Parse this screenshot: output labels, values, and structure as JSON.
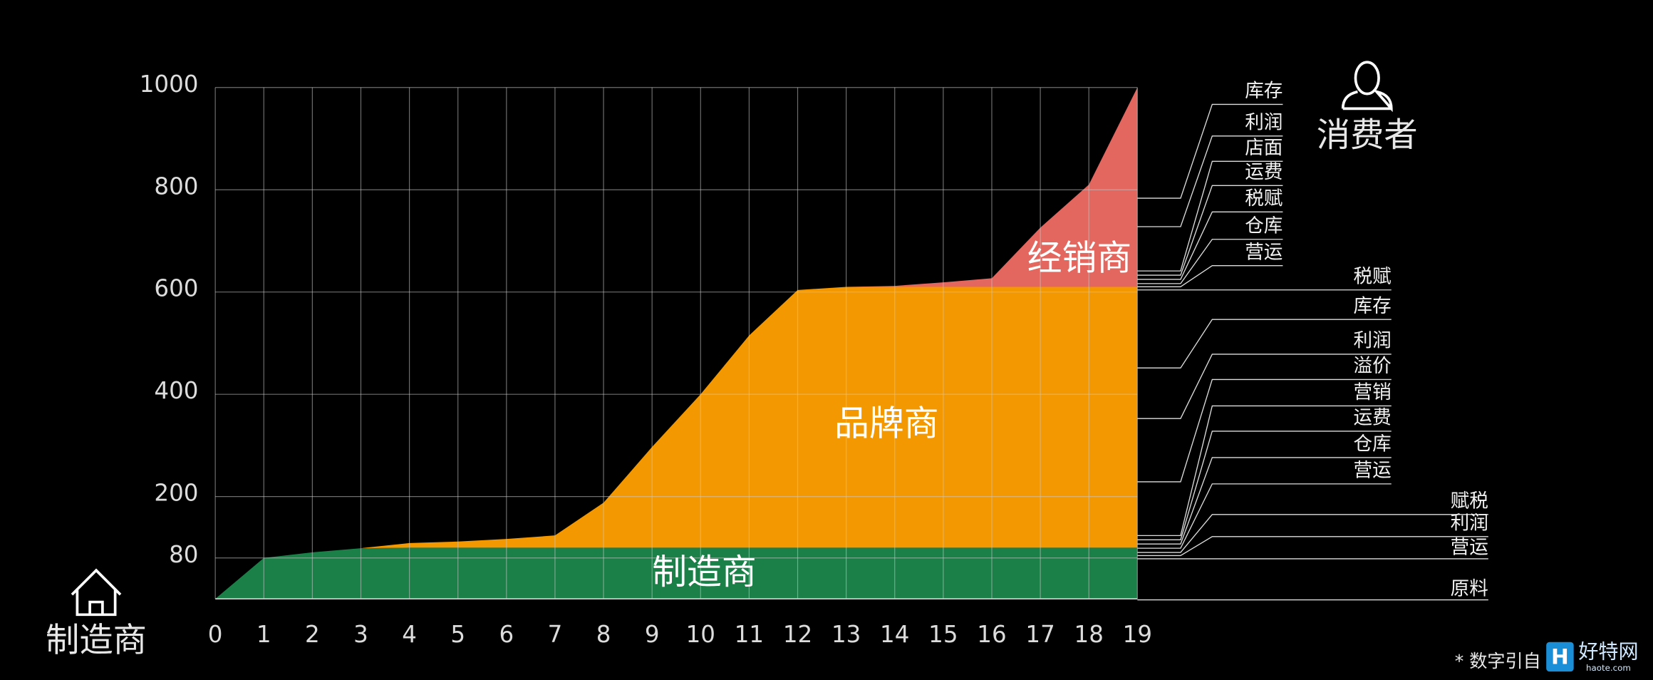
{
  "chart_data": {
    "type": "area",
    "stacked": true,
    "grid": true,
    "x": [
      0,
      1,
      2,
      3,
      4,
      5,
      6,
      7,
      8,
      9,
      10,
      11,
      12,
      13,
      14,
      15,
      16,
      17,
      18,
      19
    ],
    "xlim": [
      0,
      19
    ],
    "xticks": [
      0,
      1,
      2,
      3,
      4,
      5,
      6,
      7,
      8,
      9,
      10,
      11,
      12,
      13,
      14,
      15,
      16,
      17,
      18,
      19
    ],
    "ylim": [
      0,
      1000
    ],
    "yticks": [
      80,
      200,
      400,
      600,
      800,
      1000
    ],
    "series": [
      {
        "name": "制造商",
        "color": "#1b7f48",
        "values": [
          0,
          80,
          91,
          99,
          100,
          100,
          100,
          100,
          100,
          100,
          100,
          100,
          100,
          100,
          100,
          100,
          100,
          100,
          100,
          100
        ]
      },
      {
        "name": "品牌商",
        "color": "#f39800",
        "values": [
          0,
          0,
          0,
          0,
          9,
          12,
          17,
          24,
          88,
          197,
          300,
          415,
          504,
          510,
          510,
          510,
          510,
          510,
          510,
          510
        ]
      },
      {
        "name": "经销商",
        "color": "#e4675f",
        "values": [
          0,
          0,
          0,
          0,
          0,
          0,
          0,
          0,
          0,
          0,
          0,
          0,
          0,
          0,
          2,
          9,
          17,
          116,
          200,
          390
        ]
      }
    ],
    "cost_labels": [
      "库存",
      "利润",
      "店面",
      "运费",
      "税赋",
      "仓库",
      "营运",
      "税赋",
      "库存",
      "利润",
      "溢价",
      "营销",
      "运费",
      "仓库",
      "营运",
      "赋税",
      "利润",
      "营运",
      "原料"
    ],
    "start_label": "制造商",
    "end_label": "消费者",
    "footnote": "* 数字引自",
    "logo": "好特网",
    "logo_sub": "haote.com"
  }
}
